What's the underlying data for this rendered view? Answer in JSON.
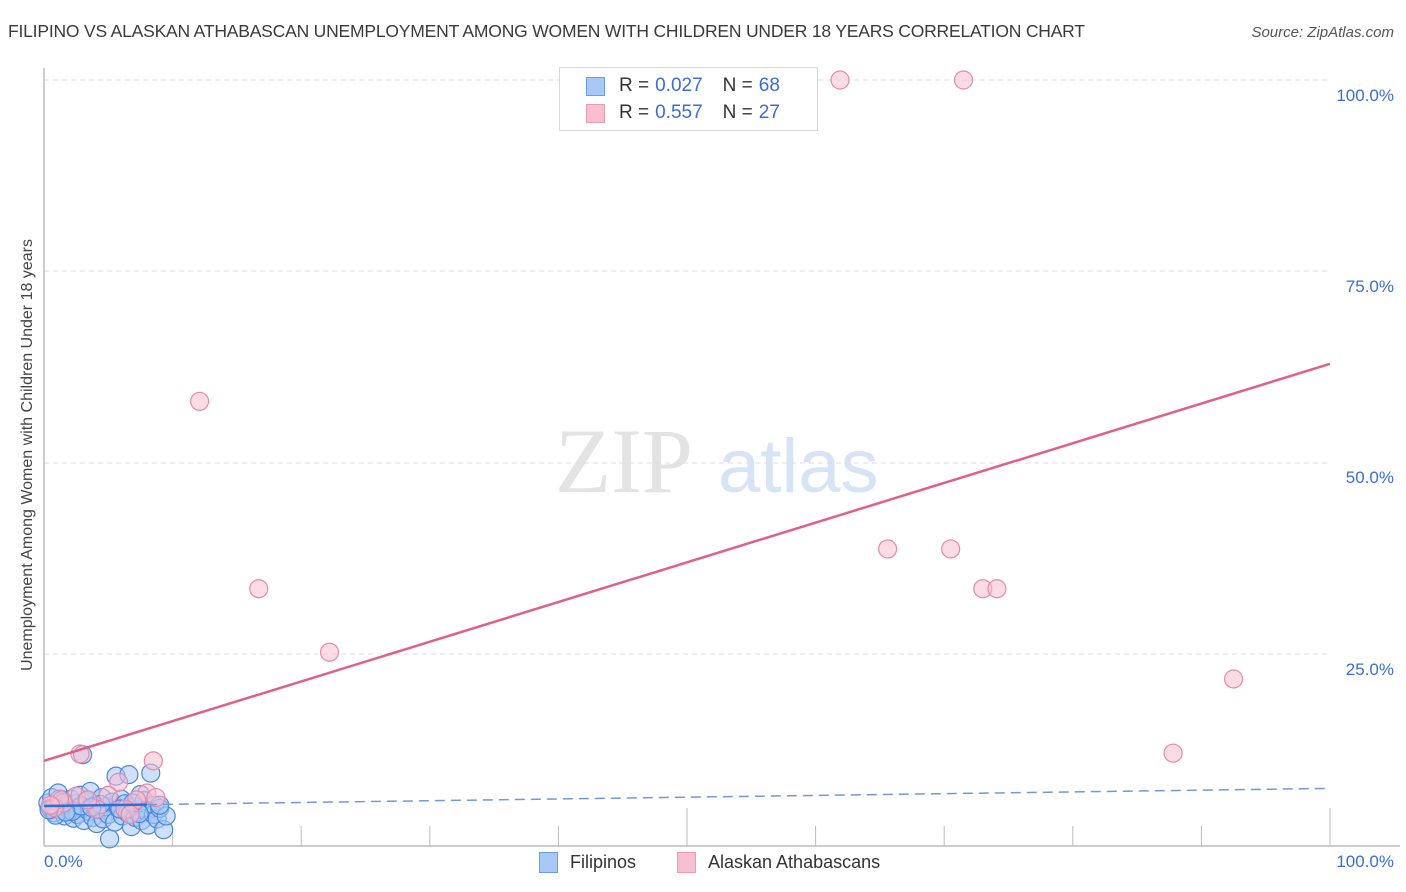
{
  "header": {
    "title": "FILIPINO VS ALASKAN ATHABASCAN UNEMPLOYMENT AMONG WOMEN WITH CHILDREN UNDER 18 YEARS CORRELATION CHART",
    "source": "Source: ZipAtlas.com"
  },
  "watermark": {
    "zip": "ZIP",
    "atlas": "atlas"
  },
  "axes": {
    "ylabel": "Unemployment Among Women with Children Under 18 years",
    "x_ticks": {
      "left": "0.0%",
      "right": "100.0%"
    },
    "y_ticks": [
      "100.0%",
      "75.0%",
      "50.0%",
      "25.0%"
    ]
  },
  "legend": {
    "rows": [
      {
        "r_label": "R =",
        "r_value": "0.027",
        "n_label": "N =",
        "n_value": "68",
        "color": "#a8c8f5"
      },
      {
        "r_label": "R =",
        "r_value": "0.557",
        "n_label": "N =",
        "n_value": "27",
        "color": "#f8bfd0"
      }
    ]
  },
  "bottom_legend": [
    {
      "label": "Filipinos",
      "color": "#a8c8f5"
    },
    {
      "label": "Alaskan Athabascans",
      "color": "#f8bfd0"
    }
  ],
  "colors": {
    "blue_fill": "#a8c8f5",
    "blue_stroke": "#4a86e0",
    "pink_fill": "#f8bfd0",
    "pink_stroke": "#e58aa8",
    "pink_line": "#e0608a",
    "blue_line": "#2f6fd6",
    "axis_text": "#3a6fd0"
  },
  "chart_data": {
    "type": "scatter",
    "title": "FILIPINO VS ALASKAN ATHABASCAN UNEMPLOYMENT AMONG WOMEN WITH CHILDREN UNDER 18 YEARS CORRELATION CHART",
    "xlabel": "",
    "ylabel": "Unemployment Among Women with Children Under 18 years",
    "xlim": [
      0,
      100
    ],
    "ylim": [
      0,
      100
    ],
    "x_ticks": [
      "0.0%",
      "100.0%"
    ],
    "y_ticks": [
      "25.0%",
      "50.0%",
      "75.0%",
      "100.0%"
    ],
    "grid": true,
    "legend_position": "top-center",
    "series": [
      {
        "name": "Filipinos",
        "R": 0.027,
        "N": 68,
        "trend": {
          "x": [
            0,
            100
          ],
          "y": [
            5.1,
            7.4
          ],
          "style": "solid near origin, dashed beyond"
        },
        "points": [
          [
            0.3,
            5.5
          ],
          [
            0.5,
            4.8
          ],
          [
            0.6,
            6.2
          ],
          [
            0.8,
            4.2
          ],
          [
            1.0,
            5.0
          ],
          [
            1.1,
            6.8
          ],
          [
            1.3,
            4.5
          ],
          [
            1.5,
            5.6
          ],
          [
            1.6,
            3.8
          ],
          [
            1.8,
            5.2
          ],
          [
            2.0,
            4.6
          ],
          [
            2.1,
            6.0
          ],
          [
            2.3,
            3.5
          ],
          [
            2.5,
            5.4
          ],
          [
            2.6,
            4.0
          ],
          [
            2.8,
            6.5
          ],
          [
            3.0,
            4.8
          ],
          [
            3.1,
            3.2
          ],
          [
            3.3,
            5.8
          ],
          [
            3.5,
            4.4
          ],
          [
            3.6,
            7.0
          ],
          [
            3.8,
            3.6
          ],
          [
            4.0,
            5.2
          ],
          [
            4.1,
            2.8
          ],
          [
            4.3,
            4.6
          ],
          [
            4.5,
            6.2
          ],
          [
            4.6,
            3.4
          ],
          [
            4.8,
            5.0
          ],
          [
            5.0,
            4.0
          ],
          [
            5.1,
            0.8
          ],
          [
            5.3,
            5.6
          ],
          [
            5.5,
            3.0
          ],
          [
            5.6,
            9.0
          ],
          [
            5.8,
            4.8
          ],
          [
            6.0,
            6.0
          ],
          [
            6.1,
            3.8
          ],
          [
            6.3,
            5.4
          ],
          [
            6.5,
            4.2
          ],
          [
            6.6,
            9.2
          ],
          [
            6.8,
            2.4
          ],
          [
            7.0,
            5.0
          ],
          [
            7.1,
            3.6
          ],
          [
            7.3,
            4.6
          ],
          [
            7.5,
            6.6
          ],
          [
            7.6,
            3.2
          ],
          [
            7.8,
            5.8
          ],
          [
            8.0,
            4.4
          ],
          [
            8.1,
            2.6
          ],
          [
            8.3,
            9.4
          ],
          [
            8.5,
            4.0
          ],
          [
            8.6,
            5.2
          ],
          [
            8.8,
            3.4
          ],
          [
            9.0,
            4.8
          ],
          [
            9.3,
            2.0
          ],
          [
            9.5,
            3.8
          ],
          [
            3.0,
            11.8
          ],
          [
            2.2,
            4.4
          ],
          [
            1.4,
            5.9
          ],
          [
            0.9,
            3.9
          ],
          [
            4.4,
            5.3
          ],
          [
            5.9,
            4.7
          ],
          [
            7.4,
            4.1
          ],
          [
            2.9,
            5.1
          ],
          [
            6.9,
            5.5
          ],
          [
            1.7,
            4.3
          ],
          [
            3.7,
            4.9
          ],
          [
            9.0,
            5.2
          ],
          [
            0.4,
            4.6
          ]
        ]
      },
      {
        "name": "Alaskan Athabascans",
        "R": 0.557,
        "N": 27,
        "trend": {
          "x": [
            0,
            100
          ],
          "y": [
            11.0,
            62.9
          ],
          "style": "solid"
        },
        "points": [
          [
            61.9,
            100
          ],
          [
            71.5,
            100
          ],
          [
            12.1,
            58.0
          ],
          [
            16.7,
            33.5
          ],
          [
            22.2,
            25.2
          ],
          [
            65.6,
            38.7
          ],
          [
            70.5,
            38.7
          ],
          [
            73.0,
            33.5
          ],
          [
            74.1,
            33.5
          ],
          [
            92.5,
            21.7
          ],
          [
            87.8,
            12.0
          ],
          [
            8.5,
            11.0
          ],
          [
            2.8,
            11.9
          ],
          [
            8.0,
            6.8
          ],
          [
            8.7,
            6.2
          ],
          [
            5.8,
            8.2
          ],
          [
            7.2,
            5.9
          ],
          [
            6.3,
            4.7
          ],
          [
            5.0,
            6.5
          ],
          [
            4.1,
            4.7
          ],
          [
            2.5,
            6.4
          ],
          [
            1.5,
            5.5
          ],
          [
            0.8,
            4.9
          ],
          [
            3.4,
            5.9
          ],
          [
            1.2,
            6.0
          ],
          [
            6.7,
            4.0
          ],
          [
            0.5,
            5.2
          ]
        ]
      }
    ]
  }
}
